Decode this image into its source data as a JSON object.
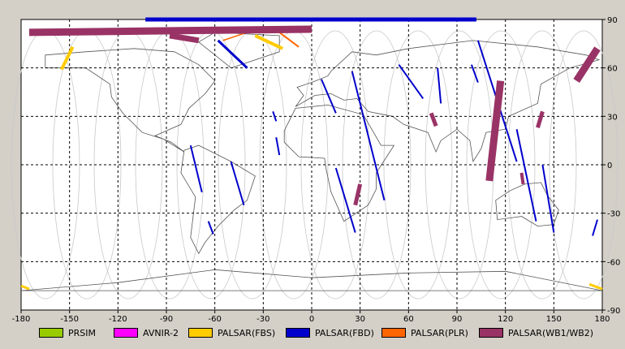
{
  "map": {
    "x_ticks": [
      "-180",
      "-150",
      "-120",
      "-90",
      "-60",
      "-30",
      "0",
      "30",
      "60",
      "90",
      "120",
      "150",
      "180"
    ],
    "y_ticks": [
      "90",
      "60",
      "30",
      "0",
      "-30",
      "-60",
      "-90"
    ]
  },
  "legend": [
    {
      "label": "PRSIM",
      "color": "#99cc00"
    },
    {
      "label": "AVNIR-2",
      "color": "#ff00ff"
    },
    {
      "label": "PALSAR(FBS)",
      "color": "#ffcc00"
    },
    {
      "label": "PALSAR(FBD)",
      "color": "#0000cc"
    },
    {
      "label": "PALSAR(PLR)",
      "color": "#ff6600"
    },
    {
      "label": "PALSAR(WB1/WB2)",
      "color": "#993366"
    }
  ]
}
